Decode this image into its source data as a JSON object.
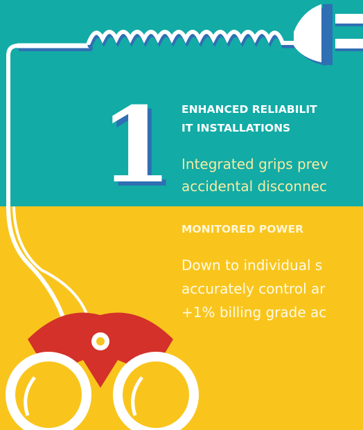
{
  "badge": "1",
  "sections": [
    {
      "title_lines": [
        "ENHANCED RELIABILIT",
        "IT INSTALLATIONS"
      ],
      "body_lines": [
        "Integrated grips prev",
        "accidental disconnec"
      ]
    },
    {
      "title_lines": [
        "MONITORED POWER"
      ],
      "body_lines": [
        "Down to individual s",
        "accurately control ar",
        "+1% billing grade ac"
      ]
    }
  ]
}
